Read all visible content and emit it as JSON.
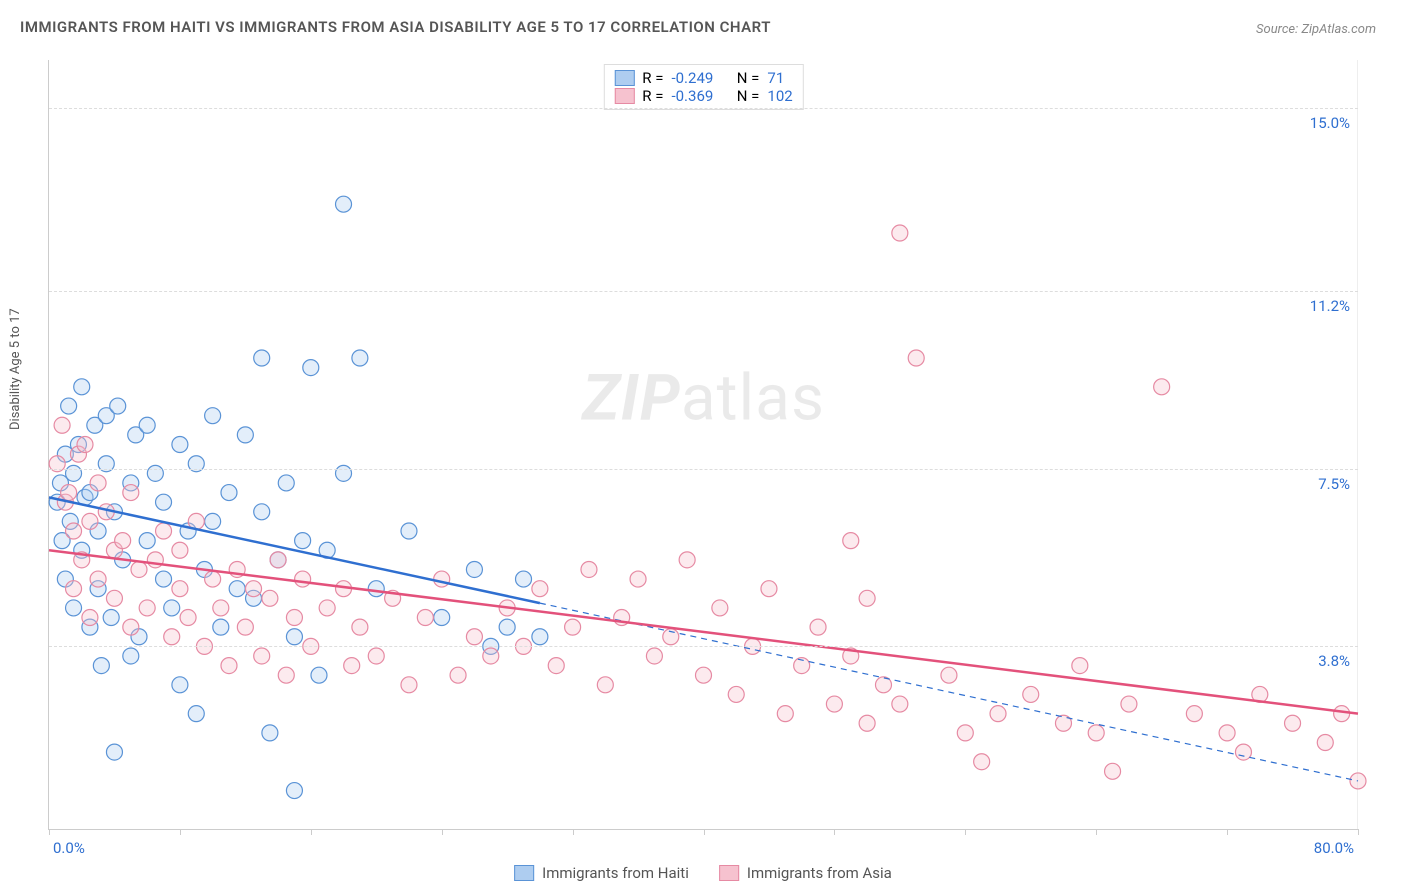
{
  "title": "IMMIGRANTS FROM HAITI VS IMMIGRANTS FROM ASIA DISABILITY AGE 5 TO 17 CORRELATION CHART",
  "source_label": "Source: ",
  "source_name": "ZipAtlas.com",
  "ylabel": "Disability Age 5 to 17",
  "watermark_a": "ZIP",
  "watermark_b": "atlas",
  "chart": {
    "type": "scatter",
    "background": "#ffffff",
    "grid_color": "#dddddd",
    "axis_color": "#cccccc",
    "xlim": [
      0,
      80
    ],
    "ylim": [
      0,
      16
    ],
    "x_ticks": [
      0,
      8,
      16,
      24,
      32,
      40,
      48,
      56,
      64,
      72,
      80
    ],
    "y_grid": [
      3.8,
      7.5,
      11.2,
      15.0
    ],
    "y_tick_labels": [
      "3.8%",
      "7.5%",
      "11.2%",
      "15.0%"
    ],
    "x_min_label": "0.0%",
    "x_max_label": "80.0%",
    "label_color": "#2f6fd0",
    "marker_radius": 8,
    "marker_stroke_width": 1.2,
    "marker_fill_opacity": 0.35,
    "trend_line_width": 2.5,
    "dashed_width": 1.2
  },
  "series": [
    {
      "name": "Immigrants from Haiti",
      "fill": "#aecdf0",
      "stroke": "#5a93d6",
      "trend_color": "#2f6fd0",
      "R": "-0.249",
      "N": "71",
      "trend": {
        "x1": 0,
        "y1": 6.9,
        "x2": 30,
        "y2": 4.7
      },
      "dashed_ext": {
        "x1": 30,
        "y1": 4.7,
        "x2": 80,
        "y2": 1.0
      },
      "points": [
        [
          0.5,
          6.8
        ],
        [
          0.7,
          7.2
        ],
        [
          0.8,
          6.0
        ],
        [
          1.0,
          7.8
        ],
        [
          1.0,
          5.2
        ],
        [
          1.2,
          8.8
        ],
        [
          1.3,
          6.4
        ],
        [
          1.5,
          4.6
        ],
        [
          1.5,
          7.4
        ],
        [
          1.8,
          8.0
        ],
        [
          2.0,
          5.8
        ],
        [
          2.0,
          9.2
        ],
        [
          2.2,
          6.9
        ],
        [
          2.5,
          4.2
        ],
        [
          2.5,
          7.0
        ],
        [
          2.8,
          8.4
        ],
        [
          3.0,
          5.0
        ],
        [
          3.0,
          6.2
        ],
        [
          3.2,
          3.4
        ],
        [
          3.5,
          8.6
        ],
        [
          3.5,
          7.6
        ],
        [
          3.8,
          4.4
        ],
        [
          4.0,
          6.6
        ],
        [
          4.0,
          1.6
        ],
        [
          4.2,
          8.8
        ],
        [
          4.5,
          5.6
        ],
        [
          5.0,
          3.6
        ],
        [
          5.0,
          7.2
        ],
        [
          5.3,
          8.2
        ],
        [
          5.5,
          4.0
        ],
        [
          6.0,
          6.0
        ],
        [
          6.0,
          8.4
        ],
        [
          6.5,
          7.4
        ],
        [
          7.0,
          5.2
        ],
        [
          7.0,
          6.8
        ],
        [
          7.5,
          4.6
        ],
        [
          8.0,
          8.0
        ],
        [
          8.0,
          3.0
        ],
        [
          8.5,
          6.2
        ],
        [
          9.0,
          7.6
        ],
        [
          9.0,
          2.4
        ],
        [
          9.5,
          5.4
        ],
        [
          10.0,
          8.6
        ],
        [
          10.0,
          6.4
        ],
        [
          10.5,
          4.2
        ],
        [
          11.0,
          7.0
        ],
        [
          11.5,
          5.0
        ],
        [
          12.0,
          8.2
        ],
        [
          12.5,
          4.8
        ],
        [
          13.0,
          6.6
        ],
        [
          13.0,
          9.8
        ],
        [
          13.5,
          2.0
        ],
        [
          14.0,
          5.6
        ],
        [
          14.5,
          7.2
        ],
        [
          15.0,
          4.0
        ],
        [
          15.0,
          0.8
        ],
        [
          15.5,
          6.0
        ],
        [
          16.0,
          9.6
        ],
        [
          16.5,
          3.2
        ],
        [
          17.0,
          5.8
        ],
        [
          18.0,
          7.4
        ],
        [
          18.0,
          13.0
        ],
        [
          19.0,
          9.8
        ],
        [
          20.0,
          5.0
        ],
        [
          22.0,
          6.2
        ],
        [
          24.0,
          4.4
        ],
        [
          26.0,
          5.4
        ],
        [
          27.0,
          3.8
        ],
        [
          28.0,
          4.2
        ],
        [
          29.0,
          5.2
        ],
        [
          30.0,
          4.0
        ]
      ]
    },
    {
      "name": "Immigrants from Asia",
      "fill": "#f6c2cf",
      "stroke": "#e68aa3",
      "trend_color": "#e3517b",
      "R": "-0.369",
      "N": "102",
      "trend": {
        "x1": 0,
        "y1": 5.8,
        "x2": 80,
        "y2": 2.4
      },
      "points": [
        [
          0.5,
          7.6
        ],
        [
          0.8,
          8.4
        ],
        [
          1.0,
          6.8
        ],
        [
          1.2,
          7.0
        ],
        [
          1.5,
          6.2
        ],
        [
          1.5,
          5.0
        ],
        [
          1.8,
          7.8
        ],
        [
          2.0,
          5.6
        ],
        [
          2.2,
          8.0
        ],
        [
          2.5,
          6.4
        ],
        [
          2.5,
          4.4
        ],
        [
          3.0,
          7.2
        ],
        [
          3.0,
          5.2
        ],
        [
          3.5,
          6.6
        ],
        [
          4.0,
          4.8
        ],
        [
          4.0,
          5.8
        ],
        [
          4.5,
          6.0
        ],
        [
          5.0,
          4.2
        ],
        [
          5.0,
          7.0
        ],
        [
          5.5,
          5.4
        ],
        [
          6.0,
          4.6
        ],
        [
          6.5,
          5.6
        ],
        [
          7.0,
          6.2
        ],
        [
          7.5,
          4.0
        ],
        [
          8.0,
          5.0
        ],
        [
          8.0,
          5.8
        ],
        [
          8.5,
          4.4
        ],
        [
          9.0,
          6.4
        ],
        [
          9.5,
          3.8
        ],
        [
          10.0,
          5.2
        ],
        [
          10.5,
          4.6
        ],
        [
          11.0,
          3.4
        ],
        [
          11.5,
          5.4
        ],
        [
          12.0,
          4.2
        ],
        [
          12.5,
          5.0
        ],
        [
          13.0,
          3.6
        ],
        [
          13.5,
          4.8
        ],
        [
          14.0,
          5.6
        ],
        [
          14.5,
          3.2
        ],
        [
          15.0,
          4.4
        ],
        [
          15.5,
          5.2
        ],
        [
          16.0,
          3.8
        ],
        [
          17.0,
          4.6
        ],
        [
          18.0,
          5.0
        ],
        [
          18.5,
          3.4
        ],
        [
          19.0,
          4.2
        ],
        [
          20.0,
          3.6
        ],
        [
          21.0,
          4.8
        ],
        [
          22.0,
          3.0
        ],
        [
          23.0,
          4.4
        ],
        [
          24.0,
          5.2
        ],
        [
          25.0,
          3.2
        ],
        [
          26.0,
          4.0
        ],
        [
          27.0,
          3.6
        ],
        [
          28.0,
          4.6
        ],
        [
          29.0,
          3.8
        ],
        [
          30.0,
          5.0
        ],
        [
          31.0,
          3.4
        ],
        [
          32.0,
          4.2
        ],
        [
          33.0,
          5.4
        ],
        [
          34.0,
          3.0
        ],
        [
          35.0,
          4.4
        ],
        [
          36.0,
          5.2
        ],
        [
          37.0,
          3.6
        ],
        [
          38.0,
          4.0
        ],
        [
          39.0,
          5.6
        ],
        [
          40.0,
          3.2
        ],
        [
          41.0,
          4.6
        ],
        [
          42.0,
          2.8
        ],
        [
          43.0,
          3.8
        ],
        [
          44.0,
          5.0
        ],
        [
          45.0,
          2.4
        ],
        [
          46.0,
          3.4
        ],
        [
          47.0,
          4.2
        ],
        [
          48.0,
          2.6
        ],
        [
          49.0,
          3.6
        ],
        [
          49.0,
          6.0
        ],
        [
          50.0,
          2.2
        ],
        [
          50.0,
          4.8
        ],
        [
          51.0,
          3.0
        ],
        [
          52.0,
          12.4
        ],
        [
          52.0,
          2.6
        ],
        [
          53.0,
          9.8
        ],
        [
          55.0,
          3.2
        ],
        [
          56.0,
          2.0
        ],
        [
          57.0,
          1.4
        ],
        [
          58.0,
          2.4
        ],
        [
          60.0,
          2.8
        ],
        [
          62.0,
          2.2
        ],
        [
          63.0,
          3.4
        ],
        [
          64.0,
          2.0
        ],
        [
          65.0,
          1.2
        ],
        [
          66.0,
          2.6
        ],
        [
          68.0,
          9.2
        ],
        [
          70.0,
          2.4
        ],
        [
          72.0,
          2.0
        ],
        [
          73.0,
          1.6
        ],
        [
          74.0,
          2.8
        ],
        [
          76.0,
          2.2
        ],
        [
          78.0,
          1.8
        ],
        [
          79.0,
          2.4
        ],
        [
          80.0,
          1.0
        ]
      ]
    }
  ],
  "legend": {
    "R_label": "R =",
    "N_label": "N ="
  }
}
